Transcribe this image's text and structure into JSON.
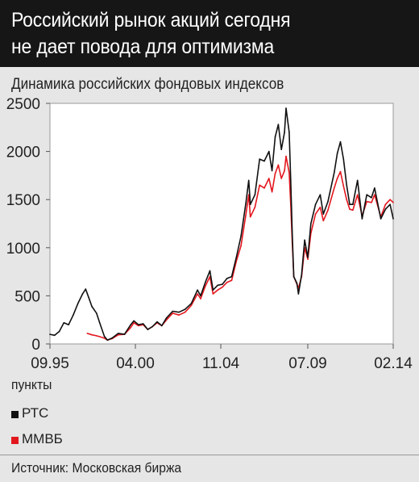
{
  "header": {
    "line1": "Российский рынок акций сегодня",
    "line2": "не дает повода для оптимизма"
  },
  "units_label": "пункты",
  "source": "Источник: Московская биржа",
  "chart_data": {
    "type": "line",
    "title": "Динамика российских фондовых индексов",
    "ylabel": "пункты",
    "ylim": [
      0,
      2500
    ],
    "yticks": [
      0,
      500,
      1000,
      1500,
      2000,
      2500
    ],
    "xlim": [
      "1995-09",
      "2014-02"
    ],
    "xticks": [
      "09.95",
      "04.00",
      "11.04",
      "07.09",
      "02.14"
    ],
    "grid": false,
    "legend": "bottom-left",
    "series": [
      {
        "name": "РТС",
        "color": "#111111",
        "points": [
          [
            "1995-09",
            100
          ],
          [
            "1995-12",
            90
          ],
          [
            "1996-03",
            130
          ],
          [
            "1996-06",
            220
          ],
          [
            "1996-09",
            200
          ],
          [
            "1996-12",
            300
          ],
          [
            "1997-03",
            420
          ],
          [
            "1997-06",
            520
          ],
          [
            "1997-08",
            570
          ],
          [
            "1997-10",
            480
          ],
          [
            "1997-12",
            390
          ],
          [
            "1998-03",
            320
          ],
          [
            "1998-05",
            220
          ],
          [
            "1998-08",
            80
          ],
          [
            "1998-10",
            40
          ],
          [
            "1999-01",
            60
          ],
          [
            "1999-05",
            110
          ],
          [
            "1999-09",
            100
          ],
          [
            "2000-01",
            200
          ],
          [
            "2000-03",
            240
          ],
          [
            "2000-06",
            200
          ],
          [
            "2000-09",
            210
          ],
          [
            "2000-12",
            150
          ],
          [
            "2001-03",
            180
          ],
          [
            "2001-06",
            230
          ],
          [
            "2001-09",
            190
          ],
          [
            "2001-12",
            270
          ],
          [
            "2002-04",
            340
          ],
          [
            "2002-08",
            330
          ],
          [
            "2002-12",
            360
          ],
          [
            "2003-04",
            420
          ],
          [
            "2003-08",
            560
          ],
          [
            "2003-10",
            500
          ],
          [
            "2004-01",
            640
          ],
          [
            "2004-04",
            760
          ],
          [
            "2004-06",
            560
          ],
          [
            "2004-09",
            610
          ],
          [
            "2004-12",
            620
          ],
          [
            "2005-03",
            680
          ],
          [
            "2005-06",
            700
          ],
          [
            "2005-09",
            900
          ],
          [
            "2005-12",
            1120
          ],
          [
            "2006-03",
            1450
          ],
          [
            "2006-05",
            1700
          ],
          [
            "2006-06",
            1450
          ],
          [
            "2006-09",
            1550
          ],
          [
            "2006-12",
            1920
          ],
          [
            "2007-03",
            1900
          ],
          [
            "2007-06",
            2000
          ],
          [
            "2007-08",
            1800
          ],
          [
            "2007-10",
            2150
          ],
          [
            "2007-12",
            2280
          ],
          [
            "2008-02",
            2020
          ],
          [
            "2008-04",
            2200
          ],
          [
            "2008-05",
            2450
          ],
          [
            "2008-07",
            2200
          ],
          [
            "2008-08",
            1700
          ],
          [
            "2008-09",
            1150
          ],
          [
            "2008-10",
            700
          ],
          [
            "2008-12",
            630
          ],
          [
            "2009-01",
            520
          ],
          [
            "2009-03",
            720
          ],
          [
            "2009-05",
            1080
          ],
          [
            "2009-07",
            900
          ],
          [
            "2009-09",
            1250
          ],
          [
            "2009-12",
            1450
          ],
          [
            "2010-03",
            1550
          ],
          [
            "2010-05",
            1350
          ],
          [
            "2010-08",
            1480
          ],
          [
            "2010-12",
            1780
          ],
          [
            "2011-02",
            1980
          ],
          [
            "2011-04",
            2100
          ],
          [
            "2011-06",
            1920
          ],
          [
            "2011-08",
            1650
          ],
          [
            "2011-10",
            1450
          ],
          [
            "2011-12",
            1450
          ],
          [
            "2012-03",
            1700
          ],
          [
            "2012-06",
            1300
          ],
          [
            "2012-09",
            1550
          ],
          [
            "2012-12",
            1520
          ],
          [
            "2013-02",
            1620
          ],
          [
            "2013-06",
            1300
          ],
          [
            "2013-09",
            1400
          ],
          [
            "2013-12",
            1450
          ],
          [
            "2014-02",
            1300
          ]
        ]
      },
      {
        "name": "ММВБ",
        "color": "#e3171e",
        "points": [
          [
            "1997-09",
            110
          ],
          [
            "1997-12",
            95
          ],
          [
            "1998-03",
            85
          ],
          [
            "1998-08",
            60
          ],
          [
            "1998-10",
            40
          ],
          [
            "1999-01",
            55
          ],
          [
            "1999-05",
            95
          ],
          [
            "1999-09",
            100
          ],
          [
            "2000-01",
            170
          ],
          [
            "2000-03",
            220
          ],
          [
            "2000-06",
            190
          ],
          [
            "2000-09",
            200
          ],
          [
            "2000-12",
            150
          ],
          [
            "2001-03",
            180
          ],
          [
            "2001-06",
            220
          ],
          [
            "2001-09",
            190
          ],
          [
            "2001-12",
            250
          ],
          [
            "2002-04",
            320
          ],
          [
            "2002-08",
            300
          ],
          [
            "2002-12",
            330
          ],
          [
            "2003-04",
            400
          ],
          [
            "2003-08",
            520
          ],
          [
            "2003-10",
            470
          ],
          [
            "2004-01",
            600
          ],
          [
            "2004-04",
            700
          ],
          [
            "2004-06",
            520
          ],
          [
            "2004-09",
            560
          ],
          [
            "2004-12",
            590
          ],
          [
            "2005-03",
            640
          ],
          [
            "2005-06",
            660
          ],
          [
            "2005-09",
            860
          ],
          [
            "2005-12",
            1020
          ],
          [
            "2006-03",
            1330
          ],
          [
            "2006-05",
            1550
          ],
          [
            "2006-06",
            1320
          ],
          [
            "2006-09",
            1420
          ],
          [
            "2006-12",
            1650
          ],
          [
            "2007-03",
            1620
          ],
          [
            "2007-06",
            1720
          ],
          [
            "2007-08",
            1580
          ],
          [
            "2007-10",
            1770
          ],
          [
            "2007-12",
            1860
          ],
          [
            "2008-02",
            1720
          ],
          [
            "2008-04",
            1800
          ],
          [
            "2008-05",
            1950
          ],
          [
            "2008-07",
            1780
          ],
          [
            "2008-08",
            1450
          ],
          [
            "2008-09",
            1050
          ],
          [
            "2008-10",
            700
          ],
          [
            "2008-12",
            620
          ],
          [
            "2009-01",
            580
          ],
          [
            "2009-03",
            700
          ],
          [
            "2009-05",
            1000
          ],
          [
            "2009-07",
            880
          ],
          [
            "2009-09",
            1150
          ],
          [
            "2009-12",
            1350
          ],
          [
            "2010-03",
            1420
          ],
          [
            "2010-05",
            1280
          ],
          [
            "2010-08",
            1390
          ],
          [
            "2010-12",
            1620
          ],
          [
            "2011-02",
            1720
          ],
          [
            "2011-04",
            1790
          ],
          [
            "2011-06",
            1640
          ],
          [
            "2011-08",
            1500
          ],
          [
            "2011-10",
            1400
          ],
          [
            "2011-12",
            1390
          ],
          [
            "2012-03",
            1550
          ],
          [
            "2012-06",
            1330
          ],
          [
            "2012-09",
            1480
          ],
          [
            "2012-12",
            1470
          ],
          [
            "2013-02",
            1550
          ],
          [
            "2013-06",
            1320
          ],
          [
            "2013-09",
            1450
          ],
          [
            "2013-12",
            1500
          ],
          [
            "2014-02",
            1470
          ]
        ]
      }
    ]
  }
}
